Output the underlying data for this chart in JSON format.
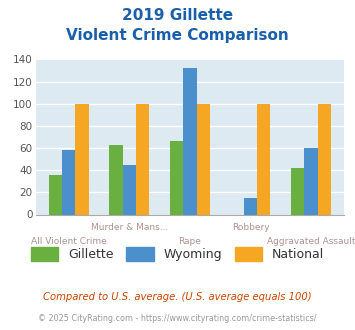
{
  "title_line1": "2019 Gillette",
  "title_line2": "Violent Crime Comparison",
  "categories": [
    "All Violent Crime",
    "Murder & Mans...",
    "Rape",
    "Robbery",
    "Aggravated Assault"
  ],
  "gillette": [
    36,
    63,
    66,
    0,
    42
  ],
  "wyoming": [
    58,
    45,
    132,
    15,
    60
  ],
  "national": [
    100,
    100,
    100,
    100,
    100
  ],
  "gillette_color": "#6ab040",
  "wyoming_color": "#4c8fcd",
  "national_color": "#f5a623",
  "bg_color": "#ddeaf2",
  "title_color": "#1a5faa",
  "xlabel_top_color": "#b09090",
  "xlabel_bot_color": "#b09090",
  "ytick_color": "#555555",
  "footnote1": "Compared to U.S. average. (U.S. average equals 100)",
  "footnote2": "© 2025 CityRating.com - https://www.cityrating.com/crime-statistics/",
  "ylim": [
    0,
    140
  ],
  "yticks": [
    0,
    20,
    40,
    60,
    80,
    100,
    120,
    140
  ],
  "bar_width": 0.22
}
